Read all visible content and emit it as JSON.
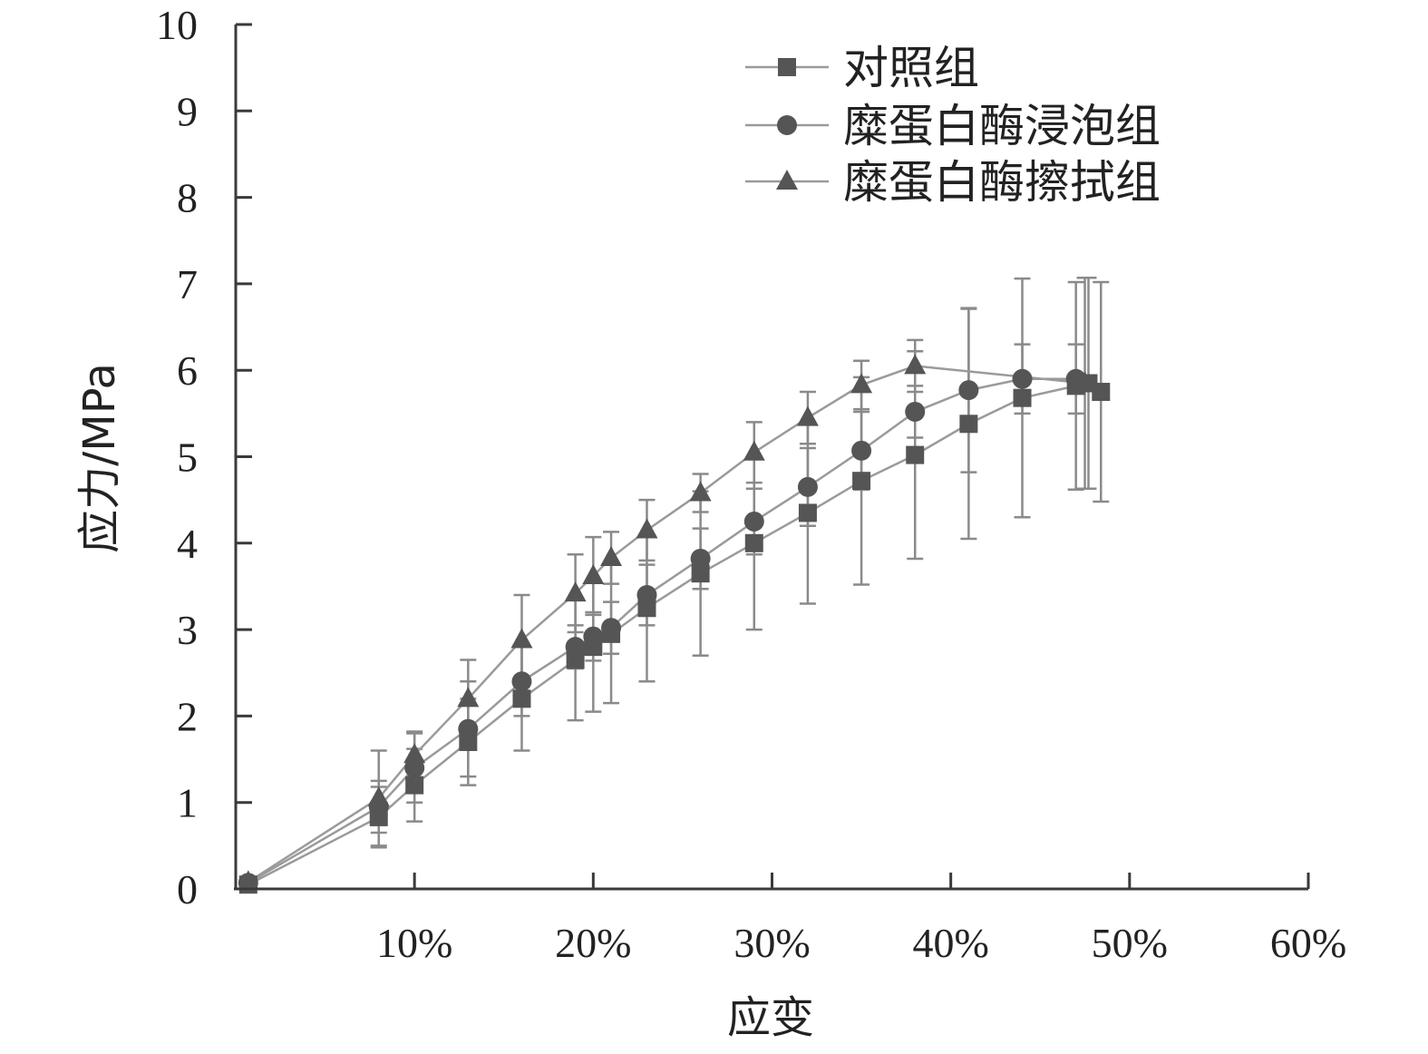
{
  "chart_data": {
    "type": "line",
    "xlabel": "应变",
    "ylabel": "应力/MPa",
    "xlim": [
      0,
      60
    ],
    "ylim": [
      0,
      10
    ],
    "x_ticks": [
      {
        "value": 10,
        "label": "10%"
      },
      {
        "value": 20,
        "label": "20%"
      },
      {
        "value": 30,
        "label": "30%"
      },
      {
        "value": 40,
        "label": "40%"
      },
      {
        "value": 50,
        "label": "50%"
      },
      {
        "value": 60,
        "label": "60%"
      }
    ],
    "y_ticks": [
      {
        "value": 0,
        "label": "0"
      },
      {
        "value": 1,
        "label": "1"
      },
      {
        "value": 2,
        "label": "2"
      },
      {
        "value": 3,
        "label": "3"
      },
      {
        "value": 4,
        "label": "4"
      },
      {
        "value": 5,
        "label": "5"
      },
      {
        "value": 6,
        "label": "6"
      },
      {
        "value": 7,
        "label": "7"
      },
      {
        "value": 8,
        "label": "8"
      },
      {
        "value": 9,
        "label": "9"
      },
      {
        "value": 10,
        "label": "10"
      }
    ],
    "legend_position": "top-right",
    "grid": false,
    "series": [
      {
        "name": "对照组",
        "marker": "square",
        "color": "#555555",
        "line_color": "#9a9a9a",
        "points": [
          {
            "x": 0.7,
            "y": 0.05,
            "err": 0
          },
          {
            "x": 8,
            "y": 0.83,
            "err": 0.35
          },
          {
            "x": 10,
            "y": 1.2,
            "err": 0.42
          },
          {
            "x": 13,
            "y": 1.7,
            "err": 0.5
          },
          {
            "x": 16,
            "y": 2.2,
            "err": 0.6
          },
          {
            "x": 19,
            "y": 2.65,
            "err": 0.7
          },
          {
            "x": 20,
            "y": 2.8,
            "err": 0.75
          },
          {
            "x": 21,
            "y": 2.95,
            "err": 0.8
          },
          {
            "x": 23,
            "y": 3.25,
            "err": 0.85
          },
          {
            "x": 26,
            "y": 3.65,
            "err": 0.95
          },
          {
            "x": 29,
            "y": 4.0,
            "err": 1.0
          },
          {
            "x": 32,
            "y": 4.35,
            "err": 1.05
          },
          {
            "x": 35,
            "y": 4.72,
            "err": 1.2
          },
          {
            "x": 38,
            "y": 5.02,
            "err": 1.2
          },
          {
            "x": 41,
            "y": 5.38,
            "err": 1.33
          },
          {
            "x": 44,
            "y": 5.68,
            "err": 1.38
          },
          {
            "x": 47,
            "y": 5.82,
            "err": 1.2
          },
          {
            "x": 47.7,
            "y": 5.85,
            "err": 1.22
          },
          {
            "x": 48.4,
            "y": 5.75,
            "err": 1.27
          }
        ]
      },
      {
        "name": "糜蛋白酶浸泡组",
        "marker": "circle",
        "color": "#555555",
        "line_color": "#9a9a9a",
        "points": [
          {
            "x": 0.7,
            "y": 0.07,
            "err": 0
          },
          {
            "x": 8,
            "y": 0.95,
            "err": 0.3
          },
          {
            "x": 10,
            "y": 1.4,
            "err": 0.4
          },
          {
            "x": 13,
            "y": 1.85,
            "err": 0.55
          },
          {
            "x": 16,
            "y": 2.4,
            "err": 0.4
          },
          {
            "x": 19,
            "y": 2.8,
            "err": 0.25
          },
          {
            "x": 20,
            "y": 2.92,
            "err": 0.28
          },
          {
            "x": 21,
            "y": 3.02,
            "err": 0.3
          },
          {
            "x": 23,
            "y": 3.4,
            "err": 0.35
          },
          {
            "x": 26,
            "y": 3.82,
            "err": 0.35
          },
          {
            "x": 29,
            "y": 4.25,
            "err": 0.38
          },
          {
            "x": 32,
            "y": 4.65,
            "err": 0.45
          },
          {
            "x": 35,
            "y": 5.07,
            "err": 0.45
          },
          {
            "x": 38,
            "y": 5.52,
            "err": 0.3
          },
          {
            "x": 41,
            "y": 5.77,
            "err": 0.95
          },
          {
            "x": 44,
            "y": 5.9,
            "err": 0.4
          },
          {
            "x": 47,
            "y": 5.9,
            "err": 0.4
          }
        ]
      },
      {
        "name": "糜蛋白酶擦拭组",
        "marker": "triangle",
        "color": "#555555",
        "line_color": "#9a9a9a",
        "points": [
          {
            "x": 0.7,
            "y": 0.08,
            "err": 0
          },
          {
            "x": 8,
            "y": 1.05,
            "err": 0.55
          },
          {
            "x": 10,
            "y": 1.55,
            "err": 0.27
          },
          {
            "x": 13,
            "y": 2.2,
            "err": 0.45
          },
          {
            "x": 16,
            "y": 2.88,
            "err": 0.52
          },
          {
            "x": 19,
            "y": 3.42,
            "err": 0.45
          },
          {
            "x": 20,
            "y": 3.62,
            "err": 0.45
          },
          {
            "x": 21,
            "y": 3.83,
            "err": 0.3
          },
          {
            "x": 23,
            "y": 4.15,
            "err": 0.35
          },
          {
            "x": 26,
            "y": 4.58,
            "err": 0.22
          },
          {
            "x": 29,
            "y": 5.05,
            "err": 0.35
          },
          {
            "x": 32,
            "y": 5.45,
            "err": 0.3
          },
          {
            "x": 35,
            "y": 5.83,
            "err": 0.28
          },
          {
            "x": 38,
            "y": 6.05,
            "err": 0.3
          },
          {
            "x": 47.5,
            "y": 5.85,
            "err": 1.22
          }
        ]
      }
    ],
    "legend": [
      {
        "label": "对照组",
        "marker": "square"
      },
      {
        "label": "糜蛋白酶浸泡组",
        "marker": "circle"
      },
      {
        "label": "糜蛋白酶擦拭组",
        "marker": "triangle"
      }
    ]
  }
}
